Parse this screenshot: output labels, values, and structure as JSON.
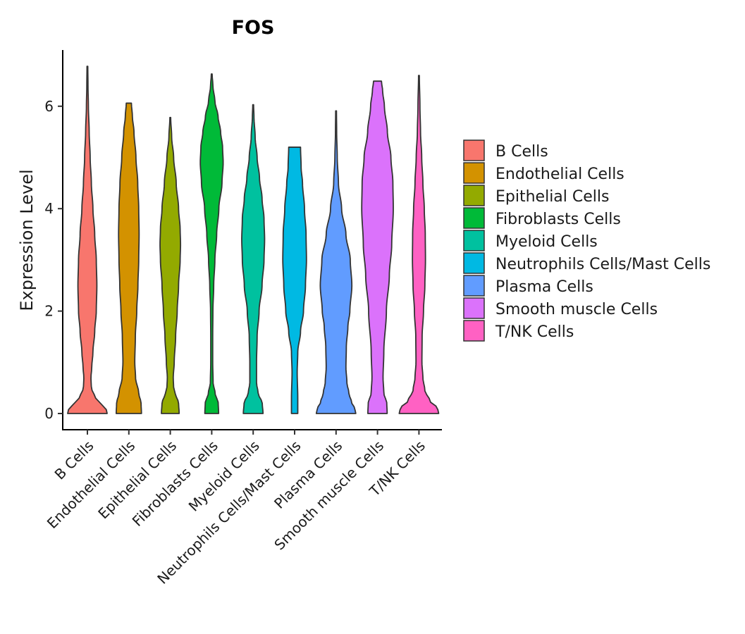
{
  "chart_data": {
    "type": "violin",
    "title": "FOS",
    "xlabel": "",
    "ylabel": "Expression Level",
    "ylim": [
      -0.3,
      7.1
    ],
    "yticks": [
      0,
      2,
      4,
      6
    ],
    "grid": false,
    "legend_position": "right",
    "categories": [
      "B Cells",
      "Endothelial Cells",
      "Epithelial Cells",
      "Fibroblasts Cells",
      "Myeloid Cells",
      "Neutrophils Cells/Mast Cells",
      "Plasma Cells",
      "Smooth muscle Cells",
      "T/NK Cells"
    ],
    "series": [
      {
        "name": "B Cells",
        "color": "#F8766D",
        "max": 6.78,
        "profile": [
          [
            0,
            1.0
          ],
          [
            0.1,
            0.95
          ],
          [
            0.2,
            0.62
          ],
          [
            0.35,
            0.35
          ],
          [
            0.5,
            0.2
          ],
          [
            0.7,
            0.18
          ],
          [
            0.9,
            0.22
          ],
          [
            1.2,
            0.28
          ],
          [
            1.6,
            0.37
          ],
          [
            2.0,
            0.45
          ],
          [
            2.5,
            0.48
          ],
          [
            3.0,
            0.45
          ],
          [
            3.5,
            0.37
          ],
          [
            4.0,
            0.28
          ],
          [
            4.5,
            0.2
          ],
          [
            5.0,
            0.14
          ],
          [
            5.5,
            0.09
          ],
          [
            6.0,
            0.05
          ],
          [
            6.4,
            0.03
          ],
          [
            6.78,
            0.02
          ]
        ]
      },
      {
        "name": "Endothelial Cells",
        "color": "#D39200",
        "max": 6.06,
        "profile": [
          [
            0,
            0.64
          ],
          [
            0.2,
            0.62
          ],
          [
            0.4,
            0.5
          ],
          [
            0.7,
            0.34
          ],
          [
            1.0,
            0.3
          ],
          [
            1.5,
            0.33
          ],
          [
            2.0,
            0.4
          ],
          [
            2.5,
            0.46
          ],
          [
            3.0,
            0.5
          ],
          [
            3.5,
            0.52
          ],
          [
            4.0,
            0.5
          ],
          [
            4.5,
            0.45
          ],
          [
            5.0,
            0.36
          ],
          [
            5.5,
            0.26
          ],
          [
            5.8,
            0.18
          ],
          [
            6.06,
            0.13
          ]
        ]
      },
      {
        "name": "Epithelial Cells",
        "color": "#93AA00",
        "max": 5.78,
        "profile": [
          [
            0,
            0.45
          ],
          [
            0.2,
            0.42
          ],
          [
            0.4,
            0.25
          ],
          [
            0.5,
            0.17
          ],
          [
            0.7,
            0.15
          ],
          [
            1.0,
            0.2
          ],
          [
            1.5,
            0.27
          ],
          [
            2.0,
            0.35
          ],
          [
            2.5,
            0.42
          ],
          [
            3.0,
            0.5
          ],
          [
            3.3,
            0.52
          ],
          [
            3.6,
            0.5
          ],
          [
            4.0,
            0.42
          ],
          [
            4.5,
            0.3
          ],
          [
            5.0,
            0.17
          ],
          [
            5.4,
            0.07
          ],
          [
            5.78,
            0.02
          ]
        ]
      },
      {
        "name": "Fibroblasts Cells",
        "color": "#00BA38",
        "max": 6.63,
        "profile": [
          [
            0,
            0.35
          ],
          [
            0.2,
            0.33
          ],
          [
            0.4,
            0.17
          ],
          [
            0.6,
            0.07
          ],
          [
            1.0,
            0.05
          ],
          [
            1.5,
            0.05
          ],
          [
            2.0,
            0.06
          ],
          [
            2.5,
            0.1
          ],
          [
            3.0,
            0.16
          ],
          [
            3.5,
            0.25
          ],
          [
            4.0,
            0.36
          ],
          [
            4.5,
            0.52
          ],
          [
            4.9,
            0.58
          ],
          [
            5.2,
            0.55
          ],
          [
            5.5,
            0.45
          ],
          [
            5.8,
            0.32
          ],
          [
            6.1,
            0.16
          ],
          [
            6.4,
            0.06
          ],
          [
            6.63,
            0.02
          ]
        ]
      },
      {
        "name": "Myeloid Cells",
        "color": "#00C19F",
        "max": 6.03,
        "profile": [
          [
            0,
            0.5
          ],
          [
            0.2,
            0.46
          ],
          [
            0.4,
            0.25
          ],
          [
            0.6,
            0.17
          ],
          [
            1.0,
            0.17
          ],
          [
            1.5,
            0.2
          ],
          [
            2.0,
            0.3
          ],
          [
            2.5,
            0.45
          ],
          [
            3.0,
            0.55
          ],
          [
            3.4,
            0.58
          ],
          [
            3.8,
            0.55
          ],
          [
            4.2,
            0.45
          ],
          [
            4.6,
            0.32
          ],
          [
            5.0,
            0.2
          ],
          [
            5.4,
            0.1
          ],
          [
            5.8,
            0.04
          ],
          [
            6.03,
            0.02
          ]
        ]
      },
      {
        "name": "Neutrophils Cells/Mast Cells",
        "color": "#00B9E3",
        "max": 5.2,
        "profile": [
          [
            0,
            0.16
          ],
          [
            0.3,
            0.16
          ],
          [
            0.8,
            0.13
          ],
          [
            1.2,
            0.16
          ],
          [
            1.6,
            0.3
          ],
          [
            2.0,
            0.45
          ],
          [
            2.5,
            0.55
          ],
          [
            3.0,
            0.6
          ],
          [
            3.5,
            0.58
          ],
          [
            4.0,
            0.5
          ],
          [
            4.5,
            0.4
          ],
          [
            4.8,
            0.33
          ],
          [
            5.2,
            0.3
          ]
        ]
      },
      {
        "name": "Plasma Cells",
        "color": "#619CFF",
        "max": 5.91,
        "profile": [
          [
            0,
            1.0
          ],
          [
            0.1,
            0.95
          ],
          [
            0.2,
            0.8
          ],
          [
            0.4,
            0.65
          ],
          [
            0.6,
            0.55
          ],
          [
            0.9,
            0.5
          ],
          [
            1.3,
            0.52
          ],
          [
            1.7,
            0.6
          ],
          [
            2.0,
            0.7
          ],
          [
            2.5,
            0.8
          ],
          [
            3.0,
            0.72
          ],
          [
            3.5,
            0.5
          ],
          [
            4.0,
            0.28
          ],
          [
            4.5,
            0.12
          ],
          [
            5.0,
            0.06
          ],
          [
            5.5,
            0.03
          ],
          [
            5.91,
            0.02
          ]
        ]
      },
      {
        "name": "Smooth muscle Cells",
        "color": "#DB72FB",
        "max": 6.49,
        "profile": [
          [
            0,
            0.49
          ],
          [
            0.2,
            0.47
          ],
          [
            0.4,
            0.32
          ],
          [
            0.7,
            0.28
          ],
          [
            1.2,
            0.32
          ],
          [
            2.0,
            0.45
          ],
          [
            2.7,
            0.6
          ],
          [
            3.3,
            0.72
          ],
          [
            4.0,
            0.8
          ],
          [
            4.5,
            0.78
          ],
          [
            5.0,
            0.68
          ],
          [
            5.5,
            0.5
          ],
          [
            6.0,
            0.35
          ],
          [
            6.3,
            0.26
          ],
          [
            6.49,
            0.2
          ]
        ]
      },
      {
        "name": "T/NK Cells",
        "color": "#FF61C3",
        "max": 6.6,
        "profile": [
          [
            0,
            1.0
          ],
          [
            0.1,
            0.95
          ],
          [
            0.25,
            0.55
          ],
          [
            0.45,
            0.3
          ],
          [
            0.7,
            0.2
          ],
          [
            1.0,
            0.15
          ],
          [
            1.5,
            0.16
          ],
          [
            2.0,
            0.23
          ],
          [
            2.5,
            0.3
          ],
          [
            3.0,
            0.33
          ],
          [
            3.5,
            0.32
          ],
          [
            4.0,
            0.27
          ],
          [
            4.5,
            0.2
          ],
          [
            5.0,
            0.14
          ],
          [
            5.5,
            0.08
          ],
          [
            6.0,
            0.05
          ],
          [
            6.6,
            0.02
          ]
        ]
      }
    ]
  }
}
